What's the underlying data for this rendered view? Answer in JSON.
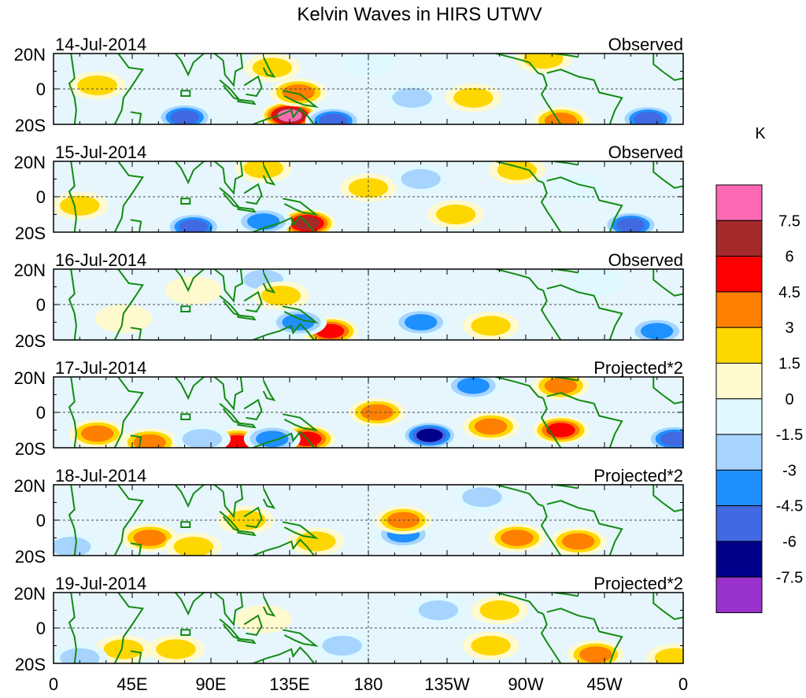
{
  "chart_data": {
    "type": "heatmap",
    "title": "Kelvin Waves in HIRS UTWV",
    "units": "K",
    "x_ticks": [
      "0",
      "45E",
      "90E",
      "135E",
      "180",
      "135W",
      "90W",
      "45W",
      "0"
    ],
    "y_ticks": [
      "20N",
      "0",
      "20S"
    ],
    "lon_range": [
      0,
      360
    ],
    "lat_range": [
      -20,
      20
    ],
    "panels": [
      {
        "date": "14-Jul-2014",
        "label": "Observed"
      },
      {
        "date": "15-Jul-2014",
        "label": "Observed"
      },
      {
        "date": "16-Jul-2014",
        "label": "Observed"
      },
      {
        "date": "17-Jul-2014",
        "label": "Projected*2"
      },
      {
        "date": "18-Jul-2014",
        "label": "Projected*2"
      },
      {
        "date": "19-Jul-2014",
        "label": "Projected*2"
      }
    ],
    "colorbar": {
      "labels": [
        "7.5",
        "6",
        "4.5",
        "3",
        "1.5",
        "0",
        "-1.5",
        "-3",
        "-4.5",
        "-6",
        "-7.5"
      ],
      "colors": [
        "#ff69b4",
        "#a52a2a",
        "#ff0000",
        "#ff7f00",
        "#ffd700",
        "#fffacd",
        "#e0f8ff",
        "#a6d4ff",
        "#1e90ff",
        "#4169e1",
        "#00008b",
        "#9932cc"
      ]
    },
    "features": [
      [
        {
          "lon": 135,
          "lat": -15,
          "value": 8.0
        },
        {
          "lon": 75,
          "lat": -16,
          "value": -6.0
        },
        {
          "lon": 160,
          "lat": -18,
          "value": -6.0
        },
        {
          "lon": 125,
          "lat": 12,
          "value": 2.5
        },
        {
          "lon": 140,
          "lat": -2,
          "value": 3.5
        },
        {
          "lon": 205,
          "lat": -5,
          "value": -3.0
        },
        {
          "lon": 240,
          "lat": -5,
          "value": 2.0
        },
        {
          "lon": 280,
          "lat": 17,
          "value": 3.0
        },
        {
          "lon": 290,
          "lat": -18,
          "value": 4.0
        },
        {
          "lon": 340,
          "lat": -17,
          "value": -6.0
        },
        {
          "lon": 25,
          "lat": 2,
          "value": 2.0
        },
        {
          "lon": 180,
          "lat": 15,
          "value": -1.5
        }
      ],
      [
        {
          "lon": 145,
          "lat": -15,
          "value": 7.0
        },
        {
          "lon": 80,
          "lat": -17,
          "value": -6.0
        },
        {
          "lon": 120,
          "lat": -14,
          "value": -4.5
        },
        {
          "lon": 120,
          "lat": 16,
          "value": 3.0
        },
        {
          "lon": 180,
          "lat": 5,
          "value": 2.5
        },
        {
          "lon": 230,
          "lat": -10,
          "value": 2.0
        },
        {
          "lon": 265,
          "lat": 15,
          "value": 2.0
        },
        {
          "lon": 330,
          "lat": -16,
          "value": -5.0
        },
        {
          "lon": 15,
          "lat": -5,
          "value": 2.0
        },
        {
          "lon": 210,
          "lat": 10,
          "value": -2.0
        },
        {
          "lon": 300,
          "lat": 5,
          "value": -1.5
        }
      ],
      [
        {
          "lon": 158,
          "lat": -15,
          "value": 5.5
        },
        {
          "lon": 140,
          "lat": -10,
          "value": -4.0
        },
        {
          "lon": 120,
          "lat": 14,
          "value": -2.5
        },
        {
          "lon": 130,
          "lat": 5,
          "value": 2.0
        },
        {
          "lon": 210,
          "lat": -10,
          "value": -4.0
        },
        {
          "lon": 250,
          "lat": -12,
          "value": 2.5
        },
        {
          "lon": 345,
          "lat": -15,
          "value": -4.0
        },
        {
          "lon": 40,
          "lat": -8,
          "value": 1.5
        },
        {
          "lon": 310,
          "lat": 12,
          "value": -1.5
        },
        {
          "lon": 80,
          "lat": 8,
          "value": 1.5
        }
      ],
      [
        {
          "lon": 25,
          "lat": -12,
          "value": 4.0
        },
        {
          "lon": 55,
          "lat": -17,
          "value": 4.0
        },
        {
          "lon": 105,
          "lat": -17,
          "value": 5.0
        },
        {
          "lon": 145,
          "lat": -15,
          "value": 6.0
        },
        {
          "lon": 125,
          "lat": -15,
          "value": -4.5
        },
        {
          "lon": 85,
          "lat": -15,
          "value": -3.0
        },
        {
          "lon": 215,
          "lat": -13,
          "value": -6.5
        },
        {
          "lon": 250,
          "lat": -8,
          "value": 4.5
        },
        {
          "lon": 290,
          "lat": -10,
          "value": 5.0
        },
        {
          "lon": 290,
          "lat": 15,
          "value": 4.0
        },
        {
          "lon": 240,
          "lat": 15,
          "value": -4.0
        },
        {
          "lon": 185,
          "lat": 0,
          "value": 4.0
        },
        {
          "lon": 355,
          "lat": -15,
          "value": -5.0
        }
      ],
      [
        {
          "lon": 55,
          "lat": -10,
          "value": 3.5
        },
        {
          "lon": 80,
          "lat": -15,
          "value": 3.0
        },
        {
          "lon": 150,
          "lat": -12,
          "value": 3.0
        },
        {
          "lon": 200,
          "lat": -8,
          "value": -3.5
        },
        {
          "lon": 245,
          "lat": 13,
          "value": -3.0
        },
        {
          "lon": 265,
          "lat": -10,
          "value": 4.0
        },
        {
          "lon": 300,
          "lat": -12,
          "value": 4.0
        },
        {
          "lon": 200,
          "lat": 0,
          "value": 3.5
        },
        {
          "lon": 10,
          "lat": -15,
          "value": -2.0
        },
        {
          "lon": 110,
          "lat": 0,
          "value": 2.0
        }
      ],
      [
        {
          "lon": 40,
          "lat": -12,
          "value": 3.0
        },
        {
          "lon": 70,
          "lat": -12,
          "value": 2.0
        },
        {
          "lon": 165,
          "lat": -10,
          "value": -2.5
        },
        {
          "lon": 220,
          "lat": 10,
          "value": -2.0
        },
        {
          "lon": 255,
          "lat": 10,
          "value": 2.5
        },
        {
          "lon": 250,
          "lat": -10,
          "value": 3.0
        },
        {
          "lon": 310,
          "lat": -15,
          "value": 4.5
        },
        {
          "lon": 355,
          "lat": -17,
          "value": 3.0
        },
        {
          "lon": 15,
          "lat": -17,
          "value": -2.0
        },
        {
          "lon": 120,
          "lat": 5,
          "value": 1.5
        }
      ]
    ]
  }
}
